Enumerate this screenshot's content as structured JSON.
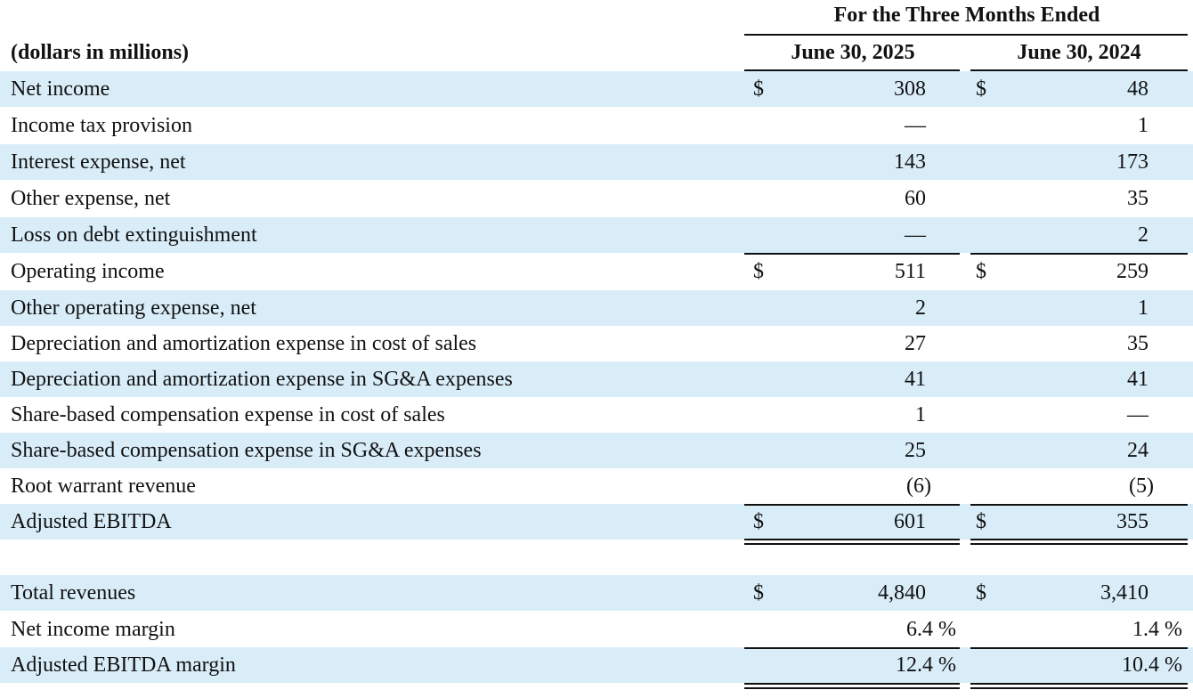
{
  "header": {
    "period_title": "For the Three Months Ended",
    "units_label": "(dollars in millions)",
    "col1": "June 30, 2025",
    "col2": "June 30, 2024"
  },
  "rows": [
    {
      "label": "Net income",
      "cur1": "$",
      "v1": "308",
      "cur2": "$",
      "v2": "48"
    },
    {
      "label": "Income tax provision",
      "cur1": "",
      "v1": "—",
      "cur2": "",
      "v2": "1"
    },
    {
      "label": "Interest expense, net",
      "cur1": "",
      "v1": "143",
      "cur2": "",
      "v2": "173"
    },
    {
      "label": "Other expense, net",
      "cur1": "",
      "v1": "60",
      "cur2": "",
      "v2": "35"
    },
    {
      "label": "Loss on debt extinguishment",
      "cur1": "",
      "v1": "—",
      "cur2": "",
      "v2": "2"
    },
    {
      "label": "Operating income",
      "cur1": "$",
      "v1": "511",
      "cur2": "$",
      "v2": "259"
    },
    {
      "label": "Other operating expense, net",
      "cur1": "",
      "v1": "2",
      "cur2": "",
      "v2": "1"
    },
    {
      "label": "Depreciation and amortization expense in cost of sales",
      "cur1": "",
      "v1": "27",
      "cur2": "",
      "v2": "35"
    },
    {
      "label": "Depreciation and amortization expense in SG&A expenses",
      "cur1": "",
      "v1": "41",
      "cur2": "",
      "v2": "41"
    },
    {
      "label": "Share-based compensation expense in cost of sales",
      "cur1": "",
      "v1": "1",
      "cur2": "",
      "v2": "—"
    },
    {
      "label": "Share-based compensation expense in SG&A expenses",
      "cur1": "",
      "v1": "25",
      "cur2": "",
      "v2": "24"
    },
    {
      "label": "Root warrant revenue",
      "cur1": "",
      "v1": "(6)",
      "cur2": "",
      "v2": "(5)"
    },
    {
      "label": "Adjusted EBITDA",
      "cur1": "$",
      "v1": "601",
      "cur2": "$",
      "v2": "355"
    },
    {
      "label": "Total revenues",
      "cur1": "$",
      "v1": "4,840",
      "cur2": "$",
      "v2": "3,410"
    },
    {
      "label": "Net income margin",
      "cur1": "",
      "v1": "6.4 %",
      "cur2": "",
      "v2": "1.4 %"
    },
    {
      "label": "Adjusted EBITDA margin",
      "cur1": "",
      "v1": "12.4 %",
      "cur2": "",
      "v2": "10.4 %"
    }
  ]
}
